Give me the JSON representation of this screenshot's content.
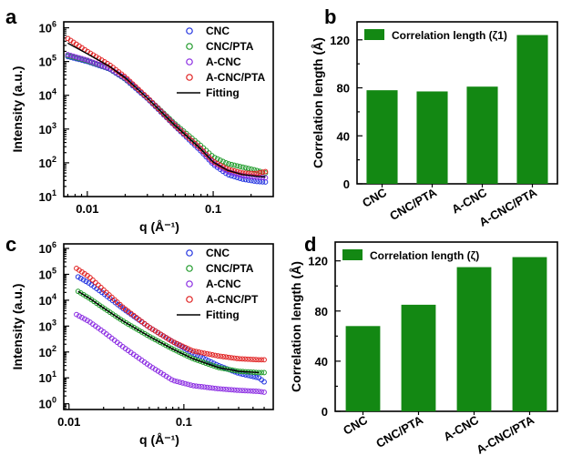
{
  "chart_data": [
    {
      "panel": "a",
      "type": "scatter",
      "xlabel": "q (Å⁻¹)",
      "ylabel": "Intensity (a.u.)",
      "xscale": "log",
      "yscale": "log",
      "xlim": [
        0.0065,
        0.3
      ],
      "ylim": [
        10,
        1500000
      ],
      "xticks": [
        {
          "v": 0.01,
          "label": "0.01"
        },
        {
          "v": 0.1,
          "label": "0.1"
        }
      ],
      "yticks": [
        {
          "v": 10,
          "m": "10",
          "e": "1"
        },
        {
          "v": 100,
          "m": "10",
          "e": "2"
        },
        {
          "v": 1000,
          "m": "10",
          "e": "3"
        },
        {
          "v": 10000,
          "m": "10",
          "e": "4"
        },
        {
          "v": 100000,
          "m": "10",
          "e": "5"
        },
        {
          "v": 1000000,
          "m": "10",
          "e": "6"
        }
      ],
      "legend_position": "top-right",
      "series": [
        {
          "name": "CNC",
          "color": "#2233e0",
          "x": [
            0.007,
            0.01,
            0.015,
            0.02,
            0.03,
            0.05,
            0.08,
            0.1,
            0.13,
            0.17,
            0.22,
            0.26
          ],
          "y": [
            140000,
            100000,
            60000,
            30000,
            8000,
            1200,
            220,
            90,
            45,
            33,
            28,
            27
          ]
        },
        {
          "name": "CNC/PTA",
          "color": "#1f9a2a",
          "x": [
            0.007,
            0.01,
            0.015,
            0.02,
            0.03,
            0.05,
            0.08,
            0.1,
            0.13,
            0.17,
            0.22,
            0.26
          ],
          "y": [
            150000,
            105000,
            62000,
            31000,
            8500,
            1400,
            320,
            150,
            95,
            75,
            60,
            50
          ]
        },
        {
          "name": "A-CNC",
          "color": "#8a2be2",
          "x": [
            0.007,
            0.01,
            0.015,
            0.02,
            0.03,
            0.05,
            0.08,
            0.1,
            0.13,
            0.17,
            0.22,
            0.26
          ],
          "y": [
            160000,
            110000,
            63000,
            32000,
            8500,
            1300,
            250,
            100,
            55,
            42,
            38,
            36
          ]
        },
        {
          "name": "A-CNC/PTA",
          "color": "#e02020",
          "x": [
            0.007,
            0.01,
            0.015,
            0.02,
            0.03,
            0.05,
            0.08,
            0.1,
            0.13,
            0.17,
            0.22,
            0.26
          ],
          "y": [
            480000,
            200000,
            80000,
            35000,
            8500,
            1250,
            260,
            110,
            65,
            50,
            48,
            55
          ]
        }
      ],
      "fitting": {
        "name": "Fitting",
        "color": "#000000",
        "x": [
          0.007,
          0.01,
          0.015,
          0.02,
          0.03,
          0.05,
          0.08,
          0.1,
          0.13,
          0.17,
          0.22,
          0.26
        ],
        "y": [
          350000,
          170000,
          72000,
          33000,
          8300,
          1250,
          250,
          105,
          60,
          45,
          40,
          38
        ]
      }
    },
    {
      "panel": "b",
      "type": "bar",
      "ylabel": "Correlation length (Å)",
      "ylim": [
        0,
        135
      ],
      "yticks": [
        0,
        40,
        80,
        120
      ],
      "categories": [
        "CNC",
        "CNC/PTA",
        "A-CNC",
        "A-CNC/PTA"
      ],
      "values": [
        78,
        77,
        81,
        124
      ],
      "bar_color": "#138813",
      "legend": "Correlation length (ζ1)",
      "legend_position": "top-left"
    },
    {
      "panel": "c",
      "type": "scatter",
      "xlabel": "q (Å⁻¹)",
      "ylabel": "Intensity (a.u.)",
      "xscale": "log",
      "yscale": "log",
      "xlim": [
        0.009,
        0.6
      ],
      "ylim": [
        0.6,
        1500000
      ],
      "xticks": [
        {
          "v": 0.01,
          "label": "0.01"
        },
        {
          "v": 0.1,
          "label": "0.1"
        }
      ],
      "yticks": [
        {
          "v": 1,
          "m": "10",
          "e": "0"
        },
        {
          "v": 10,
          "m": "10",
          "e": "1"
        },
        {
          "v": 100,
          "m": "10",
          "e": "2"
        },
        {
          "v": 1000,
          "m": "10",
          "e": "3"
        },
        {
          "v": 10000,
          "m": "10",
          "e": "4"
        },
        {
          "v": 100000,
          "m": "10",
          "e": "5"
        },
        {
          "v": 1000000,
          "m": "10",
          "e": "6"
        }
      ],
      "legend_position": "top-right",
      "series": [
        {
          "name": "CNC",
          "color": "#2233e0",
          "x": [
            0.012,
            0.015,
            0.02,
            0.03,
            0.05,
            0.08,
            0.12,
            0.2,
            0.3,
            0.45,
            0.5
          ],
          "y": [
            80000,
            45000,
            18000,
            4500,
            900,
            250,
            90,
            30,
            15,
            10,
            7
          ]
        },
        {
          "name": "CNC/PTA",
          "color": "#1f9a2a",
          "x": [
            0.012,
            0.015,
            0.02,
            0.03,
            0.05,
            0.08,
            0.12,
            0.2,
            0.3,
            0.45,
            0.5
          ],
          "y": [
            22000,
            12000,
            5000,
            1500,
            400,
            130,
            55,
            25,
            18,
            16,
            16
          ]
        },
        {
          "name": "A-CNC",
          "color": "#8a2be2",
          "x": [
            0.011,
            0.015,
            0.02,
            0.03,
            0.05,
            0.08,
            0.12,
            0.2,
            0.3,
            0.45,
            0.5
          ],
          "y": [
            3200,
            1500,
            600,
            150,
            30,
            8,
            5,
            3.8,
            3.3,
            3,
            2.8
          ]
        },
        {
          "name": "A-CNC/PT",
          "color": "#e02020",
          "x": [
            0.011,
            0.015,
            0.02,
            0.03,
            0.05,
            0.08,
            0.12,
            0.2,
            0.3,
            0.45,
            0.5
          ],
          "y": [
            200000,
            80000,
            25000,
            5000,
            900,
            250,
            110,
            70,
            55,
            50,
            50
          ]
        }
      ],
      "fitting": {
        "name": "Fitting",
        "color": "#000000",
        "x": [
          0.012,
          0.015,
          0.02,
          0.03,
          0.05,
          0.08,
          0.12,
          0.2,
          0.3,
          0.45
        ],
        "y": [
          22000,
          12000,
          5000,
          1500,
          400,
          130,
          55,
          25,
          18,
          16
        ]
      }
    },
    {
      "panel": "d",
      "type": "bar",
      "ylabel": "Correlation length (Å)",
      "ylim": [
        0,
        135
      ],
      "yticks": [
        0,
        40,
        80,
        120
      ],
      "categories": [
        "CNC",
        "CNC/PTA",
        "A-CNC",
        "A-CNC/PTA"
      ],
      "values": [
        68,
        85,
        115,
        123
      ],
      "bar_color": "#138813",
      "legend": "Correlation length (ζ)",
      "legend_position": "top-left"
    }
  ],
  "panel_letters": [
    "a",
    "b",
    "c",
    "d"
  ]
}
